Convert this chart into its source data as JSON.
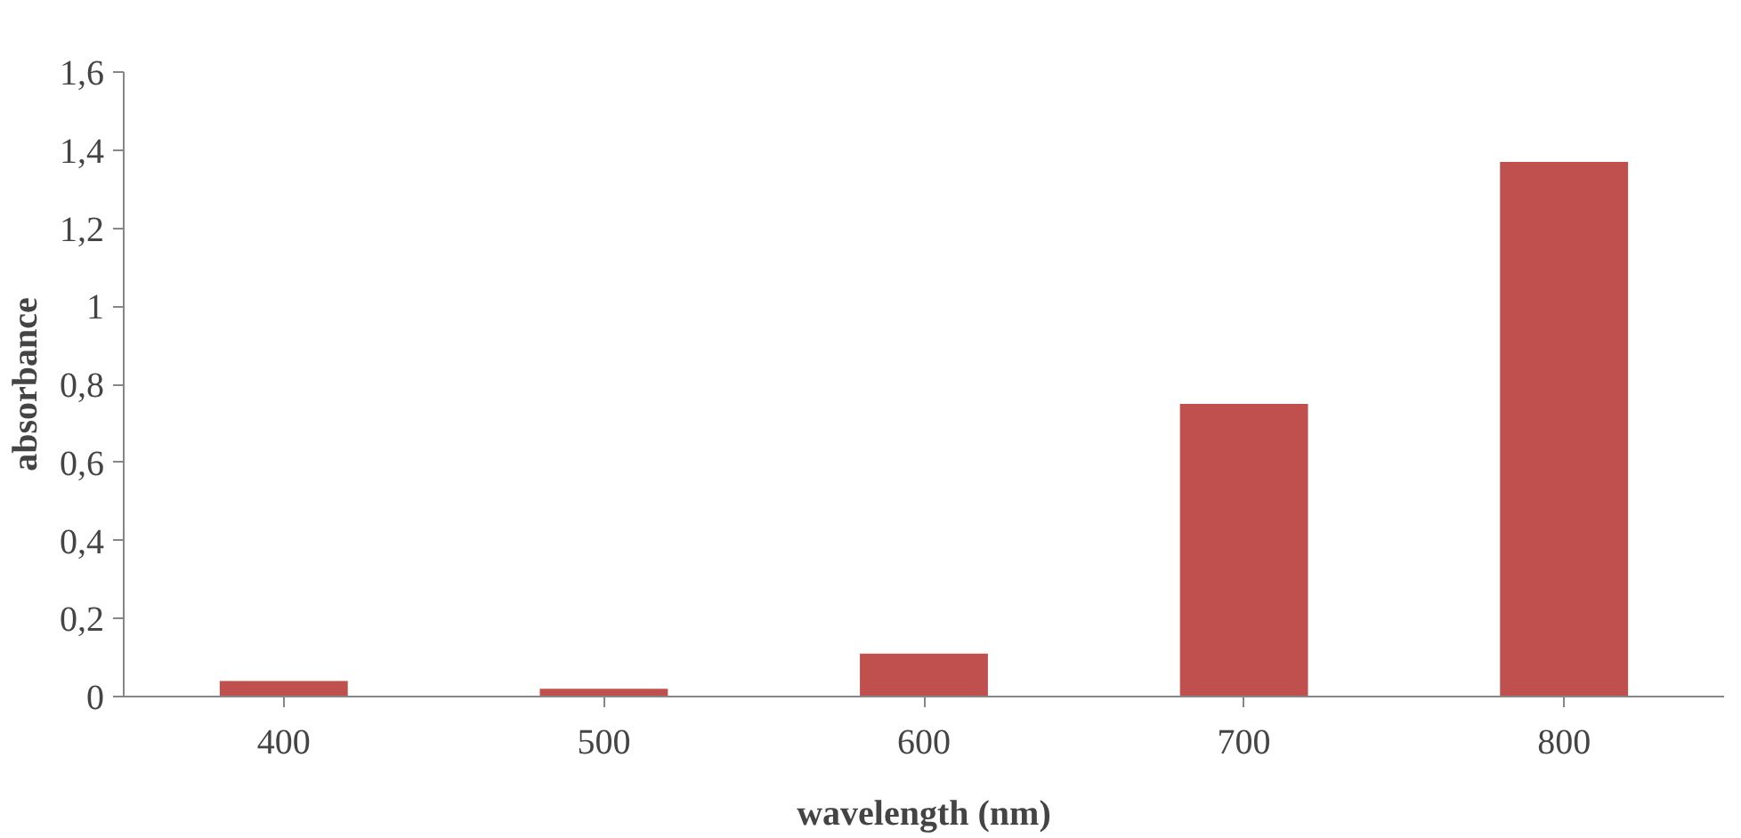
{
  "chart_data": {
    "type": "bar",
    "xlabel": "wavelength (nm)",
    "ylabel": "absorbance",
    "categories": [
      "400",
      "500",
      "600",
      "700",
      "800"
    ],
    "series": [
      {
        "color": "#c0504d",
        "values": [
          0.04,
          0.02,
          0.11,
          0.75,
          1.37
        ]
      }
    ],
    "ylim": [
      0,
      1.6
    ],
    "yticks": [
      0,
      {
        "value": 0.2,
        "label": "0,2"
      },
      {
        "value": 0.4,
        "label": "0,4"
      },
      {
        "value": 0.6,
        "label": "0,6"
      },
      {
        "value": 0.8,
        "label": "0,8"
      },
      1,
      {
        "value": 1.2,
        "label": "1,2"
      },
      {
        "value": 1.4,
        "label": "1,4"
      },
      {
        "value": 1.6,
        "label": "1,6"
      }
    ],
    "grid": false
  }
}
